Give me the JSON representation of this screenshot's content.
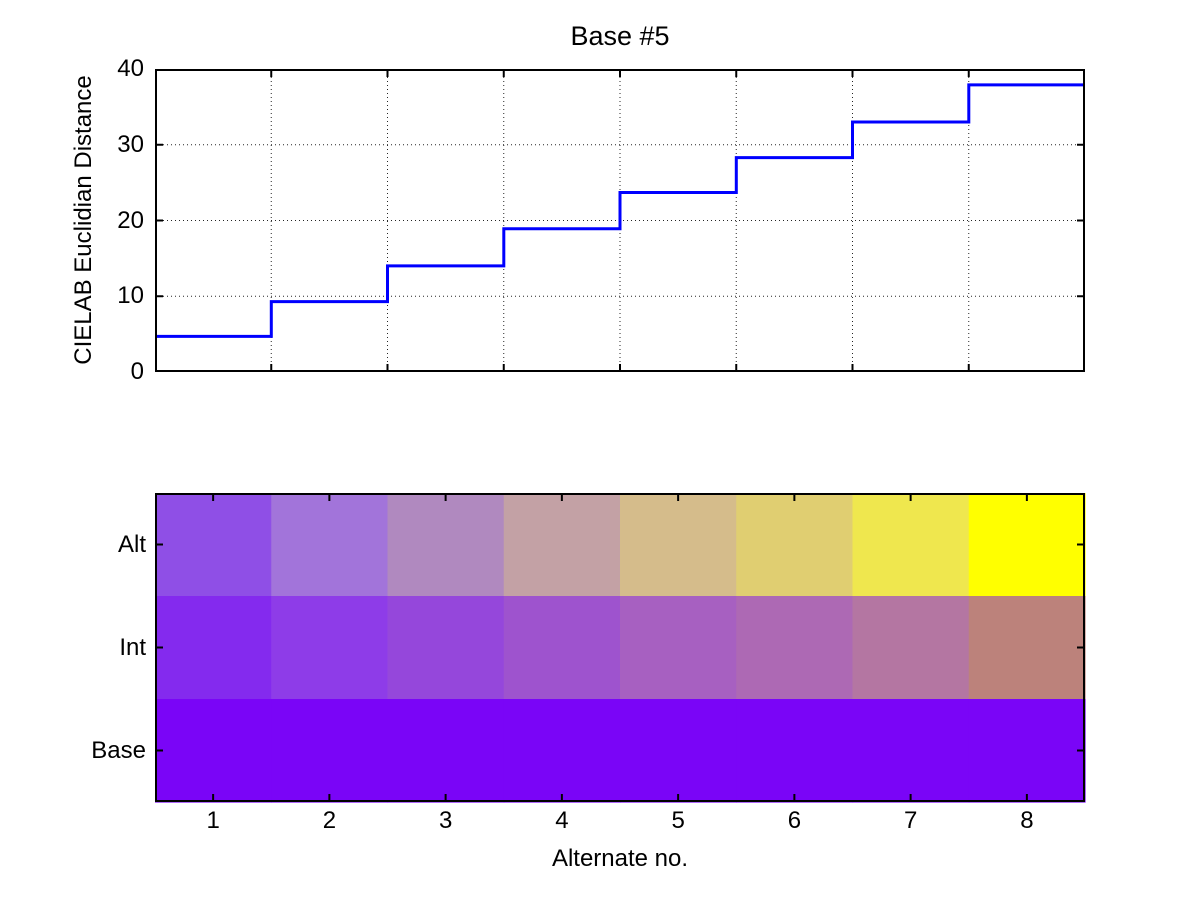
{
  "figure": {
    "background": "#FFFFFF",
    "axis_color": "#000000"
  },
  "chart_data": [
    {
      "type": "line",
      "subtype": "stairs",
      "title": "Base #5",
      "ylabel": "CIELAB Euclidian Distance",
      "xlabel": "",
      "xlim": [
        0,
        8
      ],
      "ylim": [
        0,
        40
      ],
      "x_ticks": [
        1,
        2,
        3,
        4,
        5,
        6,
        7,
        8
      ],
      "y_ticks": [
        0,
        10,
        20,
        30,
        40
      ],
      "y_tick_labels": [
        "0",
        "10",
        "20",
        "30",
        "40"
      ],
      "grid": true,
      "legend": "none",
      "line_color": "#0000FF",
      "x": [
        0,
        1,
        2,
        3,
        4,
        5,
        6,
        7
      ],
      "values": [
        4.7,
        9.3,
        14.0,
        18.9,
        23.7,
        28.3,
        33.0,
        37.9
      ]
    },
    {
      "type": "heatmap",
      "xlabel": "Alternate no.",
      "x_ticks": [
        1,
        2,
        3,
        4,
        5,
        6,
        7,
        8
      ],
      "x_tick_labels": [
        "1",
        "2",
        "3",
        "4",
        "5",
        "6",
        "7",
        "8"
      ],
      "row_labels": [
        "Alt",
        "Int",
        "Base"
      ],
      "rows": [
        {
          "label": "Alt",
          "colors": [
            "#8F4FE6",
            "#A274DA",
            "#B089BF",
            "#C3A1A5",
            "#D5BC8B",
            "#E0CE71",
            "#EFE74E",
            "#FFFF00"
          ]
        },
        {
          "label": "Int",
          "colors": [
            "#842AEE",
            "#8E3CE8",
            "#9547DB",
            "#9E53CE",
            "#A760C1",
            "#AD69B4",
            "#B476A2",
            "#BC827B"
          ]
        },
        {
          "label": "Base",
          "colors": [
            "#7A05F7",
            "#7A05F7",
            "#7A05F7",
            "#7A05F7",
            "#7A05F7",
            "#7A05F7",
            "#7A05F7",
            "#7A05F7"
          ]
        }
      ]
    }
  ]
}
